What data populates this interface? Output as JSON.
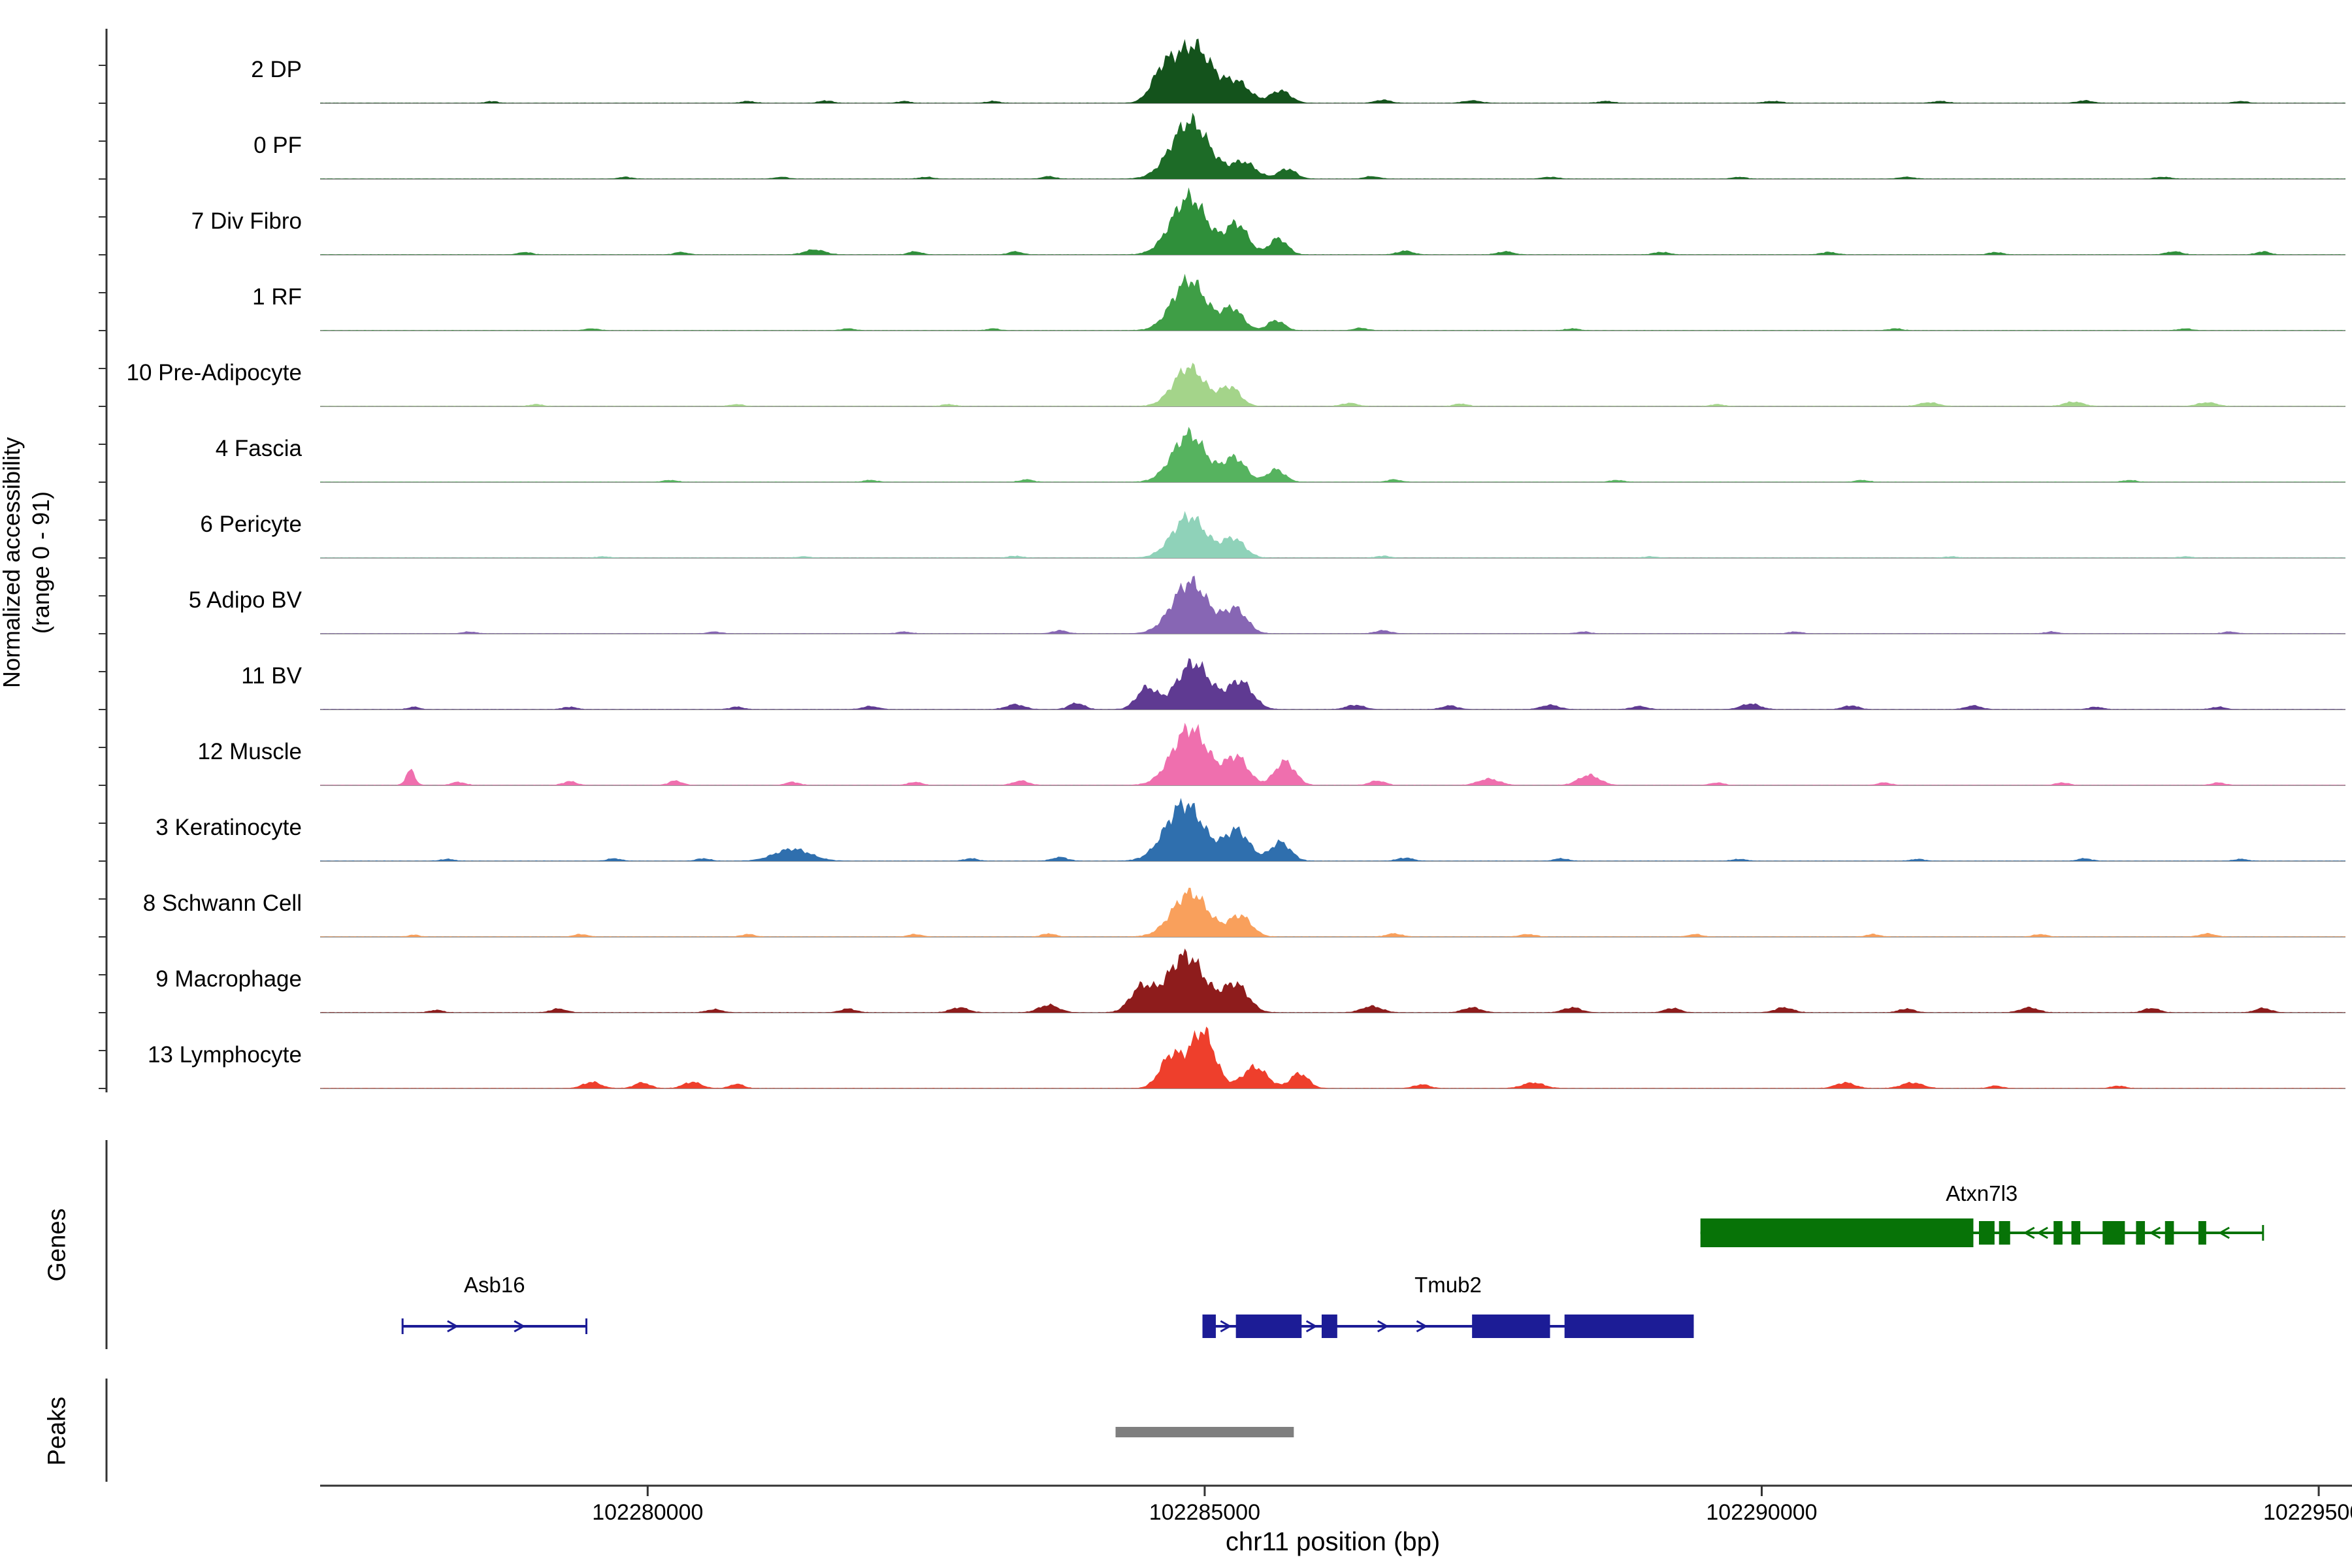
{
  "y_axis": {
    "label_line1": "Normalized accessibility",
    "label_line2": "(range 0 - 91)"
  },
  "sections": {
    "genes_label": "Genes",
    "peaks_label": "Peaks"
  },
  "x_axis": {
    "title": "chr11 position (bp)",
    "ticks": [
      {
        "pos": 102280000,
        "label": "102280000"
      },
      {
        "pos": 102285000,
        "label": "102285000"
      },
      {
        "pos": 102290000,
        "label": "102290000"
      },
      {
        "pos": 102295000,
        "label": "102295000"
      }
    ]
  },
  "chart_data": {
    "type": "area",
    "title": "",
    "xlabel": "chr11 position (bp)",
    "ylabel": "Normalized accessibility (range 0 - 91)",
    "region": {
      "chrom": "chr11",
      "start": 102277060,
      "end": 102295240
    },
    "value_range": [
      0,
      91
    ],
    "tracks": [
      {
        "label": "2 DP",
        "color": "#14531c",
        "signal": [
          [
            102284900,
            170,
            91
          ],
          [
            102284620,
            100,
            40
          ],
          [
            102285300,
            110,
            30
          ],
          [
            102285680,
            90,
            20
          ],
          [
            102278600,
            50,
            3
          ],
          [
            102280900,
            60,
            3
          ],
          [
            102281600,
            60,
            4
          ],
          [
            102282300,
            55,
            3
          ],
          [
            102283100,
            60,
            3
          ],
          [
            102286600,
            70,
            5
          ],
          [
            102287400,
            80,
            4
          ],
          [
            102288600,
            70,
            3
          ],
          [
            102290100,
            80,
            3
          ],
          [
            102291600,
            70,
            3
          ],
          [
            102292900,
            70,
            4
          ],
          [
            102294300,
            60,
            3
          ]
        ]
      },
      {
        "label": "0 PF",
        "color": "#1d6b27",
        "signal": [
          [
            102284870,
            170,
            91
          ],
          [
            102285350,
            110,
            26
          ],
          [
            102285740,
            80,
            16
          ],
          [
            102279800,
            60,
            3
          ],
          [
            102281200,
            60,
            3
          ],
          [
            102282500,
            60,
            3
          ],
          [
            102283600,
            60,
            4
          ],
          [
            102286500,
            65,
            4
          ],
          [
            102288100,
            70,
            3
          ],
          [
            102289800,
            60,
            3
          ],
          [
            102291300,
            70,
            3
          ],
          [
            102293600,
            70,
            3
          ]
        ]
      },
      {
        "label": "7 Div Fibro",
        "color": "#2f8f3a",
        "signal": [
          [
            102284860,
            160,
            91
          ],
          [
            102285290,
            100,
            48
          ],
          [
            102285660,
            80,
            26
          ],
          [
            102278900,
            60,
            4
          ],
          [
            102280300,
            60,
            4
          ],
          [
            102281500,
            90,
            8
          ],
          [
            102282400,
            60,
            5
          ],
          [
            102283300,
            60,
            5
          ],
          [
            102286800,
            70,
            6
          ],
          [
            102287700,
            70,
            5
          ],
          [
            102289100,
            70,
            4
          ],
          [
            102290600,
            70,
            4
          ],
          [
            102292100,
            60,
            4
          ],
          [
            102293700,
            70,
            5
          ],
          [
            102294500,
            60,
            5
          ]
        ]
      },
      {
        "label": "1 RF",
        "color": "#3f9e46",
        "signal": [
          [
            102284860,
            150,
            80
          ],
          [
            102285250,
            95,
            34
          ],
          [
            102285640,
            75,
            16
          ],
          [
            102279500,
            60,
            3
          ],
          [
            102281800,
            60,
            3
          ],
          [
            102283100,
            55,
            3
          ],
          [
            102286400,
            60,
            4
          ],
          [
            102288300,
            60,
            3
          ],
          [
            102291200,
            60,
            3
          ],
          [
            102293800,
            60,
            3
          ]
        ]
      },
      {
        "label": "10 Pre-Adipocyte",
        "color": "#a4d48a",
        "signal": [
          [
            102284860,
            140,
            62
          ],
          [
            102285230,
            90,
            30
          ],
          [
            102279000,
            60,
            3
          ],
          [
            102280800,
            60,
            3
          ],
          [
            102282700,
            60,
            3
          ],
          [
            102286300,
            70,
            5
          ],
          [
            102287300,
            60,
            4
          ],
          [
            102289600,
            60,
            3
          ],
          [
            102291500,
            85,
            6
          ],
          [
            102292800,
            85,
            7
          ],
          [
            102294000,
            85,
            6
          ]
        ]
      },
      {
        "label": "4 Fascia",
        "color": "#56b35f",
        "signal": [
          [
            102284860,
            150,
            76
          ],
          [
            102285270,
            100,
            38
          ],
          [
            102285640,
            80,
            20
          ],
          [
            102280200,
            60,
            3
          ],
          [
            102282000,
            60,
            3
          ],
          [
            102283400,
            60,
            4
          ],
          [
            102286700,
            60,
            4
          ],
          [
            102288700,
            60,
            3
          ],
          [
            102290900,
            60,
            3
          ],
          [
            102293300,
            60,
            3
          ]
        ]
      },
      {
        "label": "6 Pericyte",
        "color": "#8fd2b9",
        "signal": [
          [
            102284860,
            150,
            66
          ],
          [
            102285260,
            100,
            30
          ],
          [
            102279600,
            60,
            2
          ],
          [
            102281400,
            60,
            2
          ],
          [
            102283300,
            60,
            3
          ],
          [
            102286600,
            60,
            3
          ],
          [
            102289000,
            60,
            2
          ],
          [
            102291700,
            60,
            2
          ],
          [
            102293800,
            60,
            2
          ]
        ]
      },
      {
        "label": "5 Adipo BV",
        "color": "#8766b4",
        "signal": [
          [
            102284870,
            160,
            82
          ],
          [
            102285280,
            100,
            38
          ],
          [
            102278400,
            60,
            3
          ],
          [
            102280600,
            60,
            3
          ],
          [
            102282300,
            60,
            3
          ],
          [
            102283700,
            65,
            5
          ],
          [
            102286600,
            70,
            5
          ],
          [
            102288400,
            60,
            3
          ],
          [
            102290300,
            60,
            3
          ],
          [
            102292600,
            60,
            3
          ],
          [
            102294200,
            60,
            3
          ]
        ]
      },
      {
        "label": "11 BV",
        "color": "#5f3a92",
        "signal": [
          [
            102284900,
            150,
            74
          ],
          [
            102285320,
            110,
            44
          ],
          [
            102284480,
            90,
            34
          ],
          [
            102277900,
            50,
            4
          ],
          [
            102279300,
            60,
            4
          ],
          [
            102280800,
            60,
            4
          ],
          [
            102282000,
            70,
            5
          ],
          [
            102283300,
            80,
            8
          ],
          [
            102283850,
            70,
            10
          ],
          [
            102286350,
            80,
            7
          ],
          [
            102287200,
            70,
            6
          ],
          [
            102288100,
            80,
            7
          ],
          [
            102288900,
            70,
            5
          ],
          [
            102289900,
            85,
            9
          ],
          [
            102290800,
            70,
            6
          ],
          [
            102291900,
            70,
            6
          ],
          [
            102293000,
            60,
            4
          ],
          [
            102294100,
            60,
            4
          ]
        ]
      },
      {
        "label": "12 Muscle",
        "color": "#ef6fae",
        "signal": [
          [
            102284870,
            160,
            91
          ],
          [
            102285290,
            100,
            44
          ],
          [
            102285720,
            90,
            38
          ],
          [
            102277870,
            40,
            24
          ],
          [
            102278300,
            60,
            5
          ],
          [
            102279300,
            60,
            6
          ],
          [
            102280250,
            60,
            7
          ],
          [
            102281300,
            60,
            5
          ],
          [
            102282400,
            60,
            5
          ],
          [
            102283350,
            70,
            7
          ],
          [
            102286550,
            70,
            7
          ],
          [
            102287550,
            95,
            10
          ],
          [
            102288450,
            95,
            16
          ],
          [
            102289600,
            60,
            4
          ],
          [
            102291100,
            60,
            4
          ],
          [
            102292700,
            60,
            4
          ],
          [
            102294100,
            60,
            4
          ]
        ]
      },
      {
        "label": "3 Keratinocyte",
        "color": "#2f6fae",
        "signal": [
          [
            102284820,
            170,
            91
          ],
          [
            102285290,
            110,
            48
          ],
          [
            102285680,
            90,
            30
          ],
          [
            102281300,
            160,
            19
          ],
          [
            102278200,
            60,
            3
          ],
          [
            102279700,
            60,
            4
          ],
          [
            102280500,
            60,
            4
          ],
          [
            102282900,
            60,
            4
          ],
          [
            102283700,
            70,
            6
          ],
          [
            102286800,
            70,
            5
          ],
          [
            102288200,
            60,
            4
          ],
          [
            102289800,
            60,
            3
          ],
          [
            102291400,
            60,
            3
          ],
          [
            102292900,
            60,
            4
          ],
          [
            102294300,
            60,
            3
          ]
        ]
      },
      {
        "label": "8 Schwann Cell",
        "color": "#f9a05c",
        "signal": [
          [
            102284870,
            160,
            70
          ],
          [
            102285320,
            100,
            33
          ],
          [
            102277900,
            50,
            3
          ],
          [
            102279400,
            60,
            4
          ],
          [
            102280900,
            60,
            4
          ],
          [
            102282400,
            60,
            4
          ],
          [
            102283600,
            60,
            5
          ],
          [
            102286700,
            70,
            5
          ],
          [
            102287900,
            70,
            4
          ],
          [
            102289400,
            60,
            4
          ],
          [
            102291000,
            60,
            4
          ],
          [
            102292500,
            60,
            4
          ],
          [
            102294000,
            70,
            5
          ]
        ]
      },
      {
        "label": "9 Macrophage",
        "color": "#8e1c1c",
        "signal": [
          [
            102284830,
            170,
            91
          ],
          [
            102285280,
            110,
            44
          ],
          [
            102284430,
            100,
            38
          ],
          [
            102278100,
            60,
            4
          ],
          [
            102279200,
            70,
            6
          ],
          [
            102280600,
            70,
            5
          ],
          [
            102281800,
            70,
            6
          ],
          [
            102282800,
            80,
            8
          ],
          [
            102283600,
            90,
            12
          ],
          [
            102286500,
            90,
            10
          ],
          [
            102287400,
            80,
            8
          ],
          [
            102288300,
            80,
            8
          ],
          [
            102289200,
            70,
            7
          ],
          [
            102290200,
            80,
            8
          ],
          [
            102291300,
            70,
            6
          ],
          [
            102292400,
            80,
            8
          ],
          [
            102293500,
            70,
            7
          ],
          [
            102294500,
            70,
            7
          ]
        ]
      },
      {
        "label": "13 Lymphocyte",
        "color": "#ee3f2c",
        "signal": [
          [
            102284980,
            110,
            91
          ],
          [
            102284700,
            100,
            52
          ],
          [
            102285450,
            110,
            34
          ],
          [
            102285850,
            80,
            24
          ],
          [
            102279500,
            80,
            10
          ],
          [
            102279950,
            70,
            9
          ],
          [
            102280400,
            80,
            10
          ],
          [
            102280800,
            60,
            7
          ],
          [
            102286950,
            70,
            6
          ],
          [
            102287950,
            95,
            9
          ],
          [
            102290750,
            85,
            9
          ],
          [
            102291350,
            95,
            9
          ],
          [
            102292100,
            60,
            4
          ],
          [
            102293200,
            60,
            4
          ]
        ]
      }
    ],
    "genes": [
      {
        "name": "Atxn7l3",
        "color": "#077307",
        "strand": "-",
        "row": 0,
        "start": 102289450,
        "end": 102294500,
        "thick_blocks": [
          [
            102289450,
            102291900
          ]
        ],
        "exons": [
          [
            102291950,
            102292090
          ],
          [
            102292130,
            102292230
          ],
          [
            102292620,
            102292700
          ],
          [
            102292780,
            102292860
          ],
          [
            102293060,
            102293260
          ],
          [
            102293360,
            102293440
          ],
          [
            102293620,
            102293700
          ],
          [
            102293920,
            102293990
          ]
        ],
        "arrows": [
          102292400,
          102292520,
          102293530,
          102294150
        ],
        "end_ticks": [
          102294500
        ]
      },
      {
        "name": "Asb16",
        "color": "#1c1c96",
        "strand": "+",
        "row": 1,
        "start": 102277800,
        "end": 102279450,
        "thick_blocks": [],
        "exons": [],
        "arrows": [
          102278250,
          102278850
        ],
        "end_ticks": [
          102277800,
          102279450
        ]
      },
      {
        "name": "Tmub2",
        "color": "#1c1c96",
        "strand": "+",
        "row": 1,
        "start": 102284980,
        "end": 102289390,
        "thick_blocks": [],
        "exons": [
          [
            102284980,
            102285100
          ],
          [
            102285280,
            102285870
          ],
          [
            102286050,
            102286190
          ],
          [
            102287400,
            102288100
          ],
          [
            102288230,
            102289390
          ]
        ],
        "arrows": [
          102285190,
          102285960,
          102286600,
          102286950
        ],
        "end_ticks": []
      }
    ],
    "peaks": [
      {
        "start": 102284200,
        "end": 102285800,
        "color": "#7f7f7f"
      }
    ]
  }
}
